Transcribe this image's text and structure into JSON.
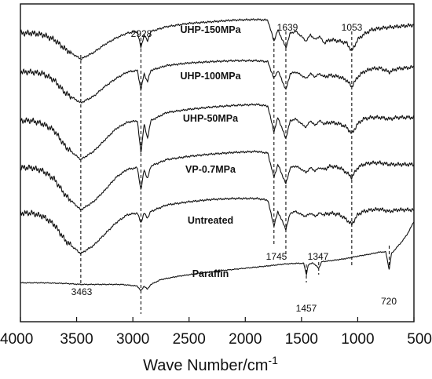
{
  "chart_data": {
    "type": "line",
    "xlabel": "Wave Number/cm",
    "xlabel_sup": "-1",
    "xlim": [
      4000,
      500
    ],
    "x_reversed": true,
    "x_ticks": [
      4000,
      3500,
      3000,
      2500,
      2000,
      1500,
      1000,
      500
    ],
    "y_ticks": [],
    "grid": false,
    "legend": "none",
    "series": [
      {
        "name": "UHP-150MPa",
        "baseline": 8.7,
        "points": [
          [
            4000,
            0
          ],
          [
            3900,
            0
          ],
          [
            3800,
            -0.05
          ],
          [
            3700,
            -0.2
          ],
          [
            3600,
            -0.5
          ],
          [
            3463,
            -0.8
          ],
          [
            3350,
            -0.6
          ],
          [
            3250,
            -0.35
          ],
          [
            3150,
            -0.15
          ],
          [
            3050,
            0
          ],
          [
            2960,
            0.05
          ],
          [
            2928,
            -0.45
          ],
          [
            2900,
            -0.05
          ],
          [
            2870,
            -0.25
          ],
          [
            2840,
            0.05
          ],
          [
            2700,
            0.2
          ],
          [
            2500,
            0.3
          ],
          [
            2300,
            0.35
          ],
          [
            2100,
            0.4
          ],
          [
            1900,
            0.42
          ],
          [
            1800,
            0.4
          ],
          [
            1745,
            -0.25
          ],
          [
            1710,
            0.1
          ],
          [
            1639,
            -0.45
          ],
          [
            1600,
            0
          ],
          [
            1550,
            0.05
          ],
          [
            1500,
            -0.1
          ],
          [
            1460,
            -0.25
          ],
          [
            1420,
            -0.05
          ],
          [
            1380,
            -0.2
          ],
          [
            1340,
            -0.1
          ],
          [
            1300,
            -0.3
          ],
          [
            1240,
            -0.2
          ],
          [
            1160,
            -0.25
          ],
          [
            1100,
            -0.3
          ],
          [
            1053,
            -0.55
          ],
          [
            1000,
            -0.2
          ],
          [
            950,
            -0.05
          ],
          [
            880,
            0.1
          ],
          [
            800,
            0.15
          ],
          [
            720,
            0.18
          ],
          [
            650,
            0.2
          ],
          [
            500,
            0.25
          ]
        ]
      },
      {
        "name": "UHP-100MPa",
        "baseline": 7.5,
        "points": [
          [
            4000,
            0
          ],
          [
            3900,
            0
          ],
          [
            3800,
            -0.05
          ],
          [
            3700,
            -0.25
          ],
          [
            3600,
            -0.65
          ],
          [
            3463,
            -0.95
          ],
          [
            3350,
            -0.75
          ],
          [
            3250,
            -0.45
          ],
          [
            3150,
            -0.2
          ],
          [
            3050,
            0
          ],
          [
            2960,
            0.05
          ],
          [
            2928,
            -0.55
          ],
          [
            2900,
            -0.05
          ],
          [
            2870,
            -0.3
          ],
          [
            2840,
            0.05
          ],
          [
            2700,
            0.2
          ],
          [
            2500,
            0.28
          ],
          [
            2300,
            0.32
          ],
          [
            2100,
            0.35
          ],
          [
            1900,
            0.35
          ],
          [
            1800,
            0.32
          ],
          [
            1745,
            -0.2
          ],
          [
            1710,
            0.05
          ],
          [
            1639,
            -0.55
          ],
          [
            1600,
            -0.05
          ],
          [
            1550,
            0
          ],
          [
            1500,
            -0.1
          ],
          [
            1460,
            -0.2
          ],
          [
            1420,
            -0.05
          ],
          [
            1380,
            -0.15
          ],
          [
            1340,
            -0.05
          ],
          [
            1300,
            -0.15
          ],
          [
            1240,
            -0.1
          ],
          [
            1160,
            -0.15
          ],
          [
            1100,
            -0.25
          ],
          [
            1053,
            -0.45
          ],
          [
            1000,
            -0.15
          ],
          [
            950,
            0
          ],
          [
            880,
            0.1
          ],
          [
            800,
            0.12
          ],
          [
            720,
            0
          ],
          [
            650,
            0.1
          ],
          [
            500,
            0.15
          ]
        ]
      },
      {
        "name": "UHP-50MPa",
        "baseline": 6.0,
        "points": [
          [
            4000,
            0
          ],
          [
            3900,
            0
          ],
          [
            3800,
            -0.1
          ],
          [
            3700,
            -0.3
          ],
          [
            3600,
            -0.8
          ],
          [
            3463,
            -1.2
          ],
          [
            3350,
            -0.95
          ],
          [
            3250,
            -0.6
          ],
          [
            3150,
            -0.25
          ],
          [
            3050,
            -0.05
          ],
          [
            2960,
            0
          ],
          [
            2928,
            -1.0
          ],
          [
            2900,
            -0.1
          ],
          [
            2870,
            -0.55
          ],
          [
            2840,
            0
          ],
          [
            2700,
            0.25
          ],
          [
            2500,
            0.35
          ],
          [
            2300,
            0.42
          ],
          [
            2100,
            0.47
          ],
          [
            1900,
            0.5
          ],
          [
            1800,
            0.45
          ],
          [
            1745,
            -0.35
          ],
          [
            1710,
            0.1
          ],
          [
            1639,
            -0.55
          ],
          [
            1600,
            0
          ],
          [
            1550,
            0.05
          ],
          [
            1500,
            -0.1
          ],
          [
            1460,
            -0.2
          ],
          [
            1420,
            0
          ],
          [
            1380,
            -0.15
          ],
          [
            1340,
            0
          ],
          [
            1300,
            -0.1
          ],
          [
            1240,
            -0.05
          ],
          [
            1160,
            -0.1
          ],
          [
            1100,
            -0.2
          ],
          [
            1053,
            -0.4
          ],
          [
            1000,
            -0.1
          ],
          [
            950,
            0.05
          ],
          [
            880,
            0.1
          ],
          [
            800,
            0.1
          ],
          [
            720,
            0.05
          ],
          [
            650,
            0.1
          ],
          [
            500,
            0.1
          ]
        ]
      },
      {
        "name": "VP-0.7MPa",
        "baseline": 4.55,
        "points": [
          [
            4000,
            0
          ],
          [
            3900,
            0
          ],
          [
            3800,
            -0.1
          ],
          [
            3700,
            -0.35
          ],
          [
            3600,
            -0.85
          ],
          [
            3463,
            -1.3
          ],
          [
            3350,
            -1.05
          ],
          [
            3250,
            -0.7
          ],
          [
            3150,
            -0.3
          ],
          [
            3050,
            -0.05
          ],
          [
            2960,
            0
          ],
          [
            2928,
            -0.7
          ],
          [
            2900,
            -0.05
          ],
          [
            2870,
            -0.35
          ],
          [
            2840,
            0.05
          ],
          [
            2700,
            0.25
          ],
          [
            2500,
            0.35
          ],
          [
            2300,
            0.42
          ],
          [
            2100,
            0.47
          ],
          [
            1900,
            0.5
          ],
          [
            1800,
            0.45
          ],
          [
            1745,
            -0.3
          ],
          [
            1710,
            0.1
          ],
          [
            1639,
            -0.5
          ],
          [
            1600,
            0
          ],
          [
            1550,
            0.05
          ],
          [
            1500,
            -0.05
          ],
          [
            1460,
            -0.15
          ],
          [
            1420,
            0
          ],
          [
            1380,
            -0.1
          ],
          [
            1340,
            0
          ],
          [
            1300,
            -0.05
          ],
          [
            1240,
            0.05
          ],
          [
            1160,
            0
          ],
          [
            1100,
            -0.15
          ],
          [
            1053,
            -0.3
          ],
          [
            1000,
            0
          ],
          [
            950,
            0.1
          ],
          [
            880,
            0.15
          ],
          [
            800,
            0.15
          ],
          [
            720,
            0.1
          ],
          [
            650,
            0.1
          ],
          [
            500,
            0.1
          ]
        ]
      },
      {
        "name": "Untreated",
        "baseline": 3.15,
        "points": [
          [
            4000,
            0
          ],
          [
            3900,
            0
          ],
          [
            3800,
            -0.1
          ],
          [
            3700,
            -0.35
          ],
          [
            3600,
            -0.85
          ],
          [
            3463,
            -1.25
          ],
          [
            3350,
            -1.0
          ],
          [
            3250,
            -0.65
          ],
          [
            3150,
            -0.3
          ],
          [
            3050,
            -0.05
          ],
          [
            2960,
            0
          ],
          [
            2928,
            -0.3
          ],
          [
            2900,
            0
          ],
          [
            2870,
            -0.15
          ],
          [
            2840,
            0.05
          ],
          [
            2700,
            0.25
          ],
          [
            2500,
            0.35
          ],
          [
            2300,
            0.42
          ],
          [
            2100,
            0.45
          ],
          [
            1900,
            0.45
          ],
          [
            1800,
            0.4
          ],
          [
            1745,
            -0.4
          ],
          [
            1710,
            0.05
          ],
          [
            1639,
            -0.5
          ],
          [
            1600,
            0
          ],
          [
            1550,
            0.05
          ],
          [
            1500,
            -0.05
          ],
          [
            1460,
            -0.1
          ],
          [
            1420,
            0
          ],
          [
            1380,
            -0.1
          ],
          [
            1340,
            0
          ],
          [
            1300,
            -0.05
          ],
          [
            1240,
            0
          ],
          [
            1160,
            -0.05
          ],
          [
            1100,
            -0.2
          ],
          [
            1053,
            -0.35
          ],
          [
            1000,
            -0.05
          ],
          [
            950,
            0.05
          ],
          [
            880,
            0.1
          ],
          [
            800,
            0.12
          ],
          [
            720,
            0.05
          ],
          [
            650,
            0.1
          ],
          [
            500,
            0.1
          ]
        ]
      },
      {
        "name": "Paraffin",
        "baseline": 1.0,
        "points": [
          [
            4000,
            0
          ],
          [
            3800,
            0
          ],
          [
            3600,
            -0.02
          ],
          [
            3463,
            -0.05
          ],
          [
            3300,
            -0.05
          ],
          [
            3100,
            -0.05
          ],
          [
            2960,
            -0.1
          ],
          [
            2928,
            -0.25
          ],
          [
            2900,
            -0.1
          ],
          [
            2870,
            -0.2
          ],
          [
            2840,
            -0.05
          ],
          [
            2750,
            0.1
          ],
          [
            2600,
            0.2
          ],
          [
            2400,
            0.3
          ],
          [
            2200,
            0.38
          ],
          [
            2000,
            0.45
          ],
          [
            1800,
            0.52
          ],
          [
            1650,
            0.58
          ],
          [
            1550,
            0.6
          ],
          [
            1480,
            0.6
          ],
          [
            1457,
            0.25
          ],
          [
            1440,
            0.55
          ],
          [
            1400,
            0.62
          ],
          [
            1347,
            0.45
          ],
          [
            1320,
            0.65
          ],
          [
            1200,
            0.7
          ],
          [
            1100,
            0.75
          ],
          [
            1000,
            0.82
          ],
          [
            900,
            0.88
          ],
          [
            800,
            0.95
          ],
          [
            750,
            0.95
          ],
          [
            720,
            0.4
          ],
          [
            700,
            0.9
          ],
          [
            650,
            1.1
          ],
          [
            600,
            1.3
          ],
          [
            550,
            1.55
          ],
          [
            500,
            1.9
          ]
        ]
      }
    ],
    "peaks": [
      {
        "label": "2928",
        "x": 2928
      },
      {
        "label": "1639",
        "x": 1639
      },
      {
        "label": "1053",
        "x": 1053
      },
      {
        "label": "1745",
        "x": 1745
      },
      {
        "label": "1347",
        "x": 1347
      },
      {
        "label": "3463",
        "x": 3463
      },
      {
        "label": "1457",
        "x": 1457
      },
      {
        "label": "720",
        "x": 720
      }
    ]
  }
}
